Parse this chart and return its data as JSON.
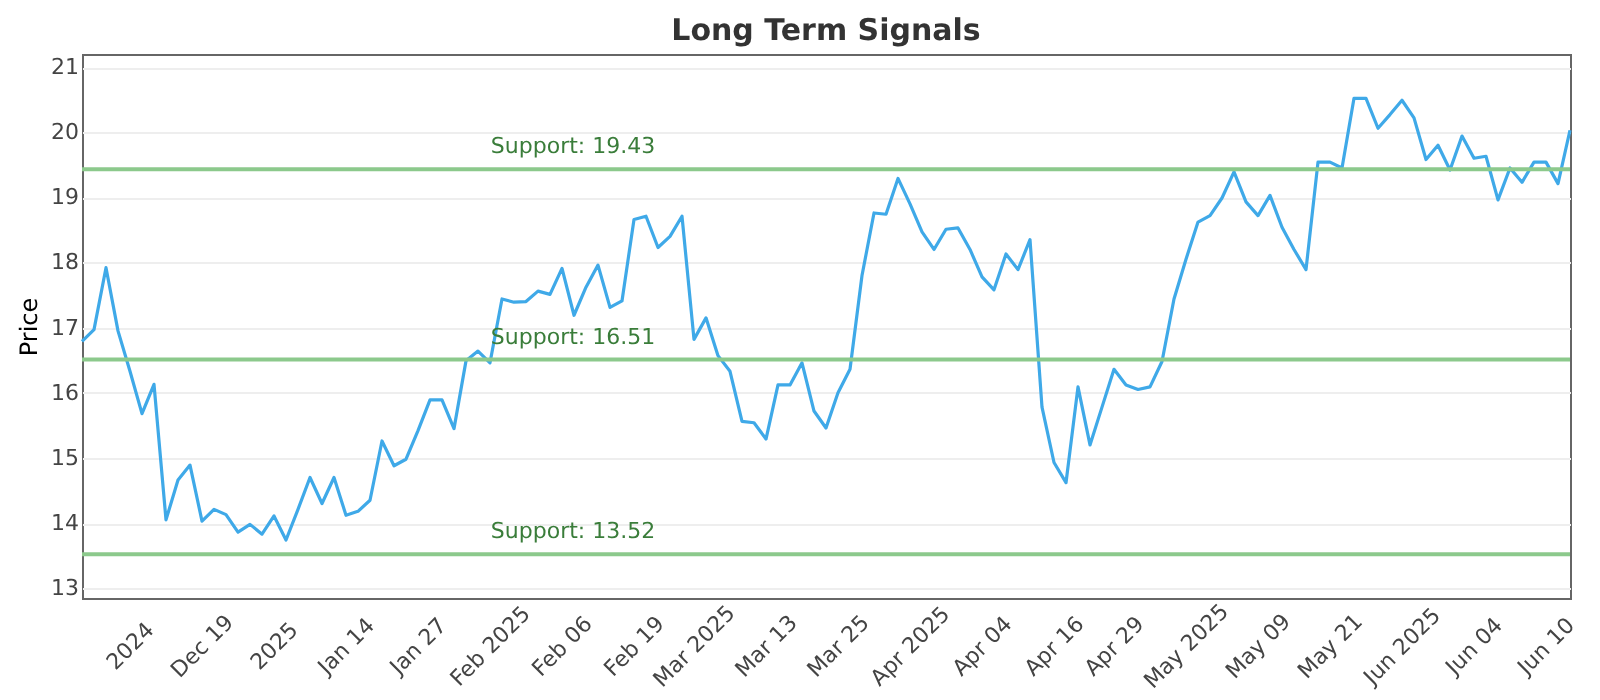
{
  "chart_data": {
    "type": "line",
    "title": "Long Term Signals",
    "ylabel": "Price",
    "categories": [
      null,
      null,
      null,
      null,
      "2024",
      null,
      null,
      null,
      null,
      null,
      "Dec 19",
      null,
      null,
      null,
      null,
      null,
      "2025",
      null,
      null,
      null,
      null,
      null,
      "Jan 14",
      null,
      null,
      null,
      null,
      null,
      "Jan 27",
      null,
      null,
      null,
      null,
      null,
      "Feb 2025",
      null,
      null,
      null,
      null,
      null,
      "Feb 06",
      null,
      null,
      null,
      null,
      null,
      "Feb 19",
      null,
      null,
      null,
      null,
      "Mar 2025",
      null,
      null,
      null,
      null,
      null,
      "Mar 13",
      null,
      null,
      null,
      null,
      null,
      "Mar 25",
      null,
      null,
      null,
      null,
      null,
      "Apr 2025",
      null,
      null,
      null,
      null,
      null,
      "Apr 04",
      null,
      null,
      null,
      null,
      null,
      "Apr 16",
      null,
      null,
      null,
      null,
      "Apr 29",
      null,
      null,
      null,
      null,
      null,
      "May 2025",
      null,
      null,
      null,
      null,
      null,
      "May 09",
      null,
      null,
      null,
      null,
      null,
      "May 21",
      null,
      null,
      null,
      null,
      null,
      "Jun 2025",
      null,
      null,
      null,
      null,
      null,
      "Jun 04",
      null,
      null,
      null,
      null,
      null,
      "Jun 10",
      null,
      null
    ],
    "series": [
      {
        "color": "#3fa9e8",
        "values": [
          16.79,
          16.97,
          17.92,
          16.95,
          16.33,
          15.68,
          16.13,
          14.05,
          14.66,
          14.89,
          14.03,
          14.21,
          14.13,
          13.86,
          13.98,
          13.83,
          14.11,
          13.74,
          14.21,
          14.7,
          14.3,
          14.7,
          14.12,
          14.18,
          14.35,
          15.26,
          14.88,
          14.98,
          15.42,
          15.89,
          15.89,
          15.45,
          16.49,
          16.64,
          16.46,
          17.44,
          17.39,
          17.4,
          17.56,
          17.51,
          17.91,
          17.19,
          17.62,
          17.96,
          17.31,
          17.41,
          18.66,
          18.71,
          18.23,
          18.4,
          18.71,
          16.82,
          17.15,
          16.57,
          16.33,
          15.56,
          15.54,
          15.29,
          16.12,
          16.12,
          16.46,
          15.72,
          15.46,
          16.0,
          16.36,
          17.8,
          18.76,
          18.74,
          19.29,
          18.9,
          18.47,
          18.2,
          18.51,
          18.53,
          18.2,
          17.78,
          17.58,
          18.13,
          17.89,
          18.35,
          15.78,
          14.93,
          14.62,
          16.09,
          15.2,
          15.78,
          16.36,
          16.12,
          16.05,
          16.09,
          16.48,
          17.44,
          18.05,
          18.62,
          18.72,
          18.99,
          19.39,
          18.93,
          18.72,
          19.03,
          18.54,
          18.2,
          17.89,
          19.54,
          19.54,
          19.45,
          20.52,
          20.52,
          20.06,
          20.27,
          20.49,
          20.22,
          19.58,
          19.8,
          19.42,
          19.94,
          19.6,
          19.63,
          18.96,
          19.45,
          19.23,
          19.54,
          19.54,
          19.21,
          20.03
        ]
      }
    ],
    "ylim": [
      12.85,
      21.2
    ],
    "yticks": [
      13,
      14,
      15,
      16,
      17,
      18,
      19,
      20,
      21
    ],
    "ref_lines": [
      {
        "axis": "y",
        "value": 19.43,
        "label": "Support: 19.43",
        "color": "#8cc98c"
      },
      {
        "axis": "y",
        "value": 16.51,
        "label": "Support: 16.51",
        "color": "#8cc98c"
      },
      {
        "axis": "y",
        "value": 13.52,
        "label": "Support: 13.52",
        "color": "#8cc98c"
      }
    ],
    "grid": "y",
    "marker": "none",
    "line_style": "solid"
  }
}
